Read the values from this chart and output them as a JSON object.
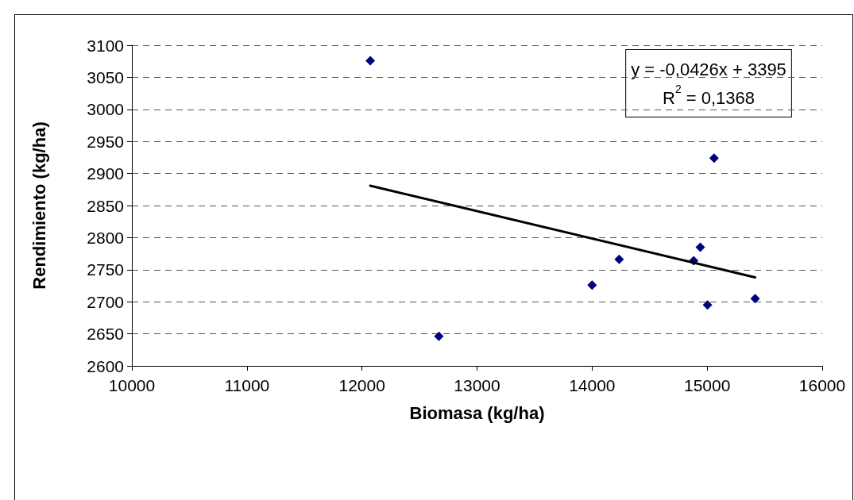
{
  "chart_data": {
    "type": "scatter",
    "xlabel": "Biomasa (kg/ha)",
    "ylabel": "Rendimiento (kg/ha)",
    "series": [
      {
        "color": "#000080",
        "marker": "diamond",
        "x": [
          12072,
          12668,
          14000,
          14235,
          14883,
          14940,
          15003,
          15060,
          15417
        ],
        "values": [
          3076,
          2646,
          2726,
          2766,
          2764,
          2785,
          2695,
          2924,
          2705
        ]
      },
      {
        "type": "line",
        "color": "#000000",
        "marker": "none",
        "line_style": "solid",
        "x": [
          12072,
          15417
        ],
        "values": [
          2881,
          2738
        ]
      }
    ],
    "annotations": [
      "y = -0,0426x + 3395\nR$^{2}$ = 0,1368"
    ],
    "xlim": [
      10000,
      16000
    ],
    "xticks": [
      10000,
      11000,
      12000,
      13000,
      14000,
      15000,
      16000
    ],
    "ylim": [
      2600,
      3100
    ],
    "yticks": [
      2600,
      2650,
      2700,
      2750,
      2800,
      2850,
      2900,
      2950,
      3000,
      3050,
      3100
    ],
    "grid": "y"
  }
}
